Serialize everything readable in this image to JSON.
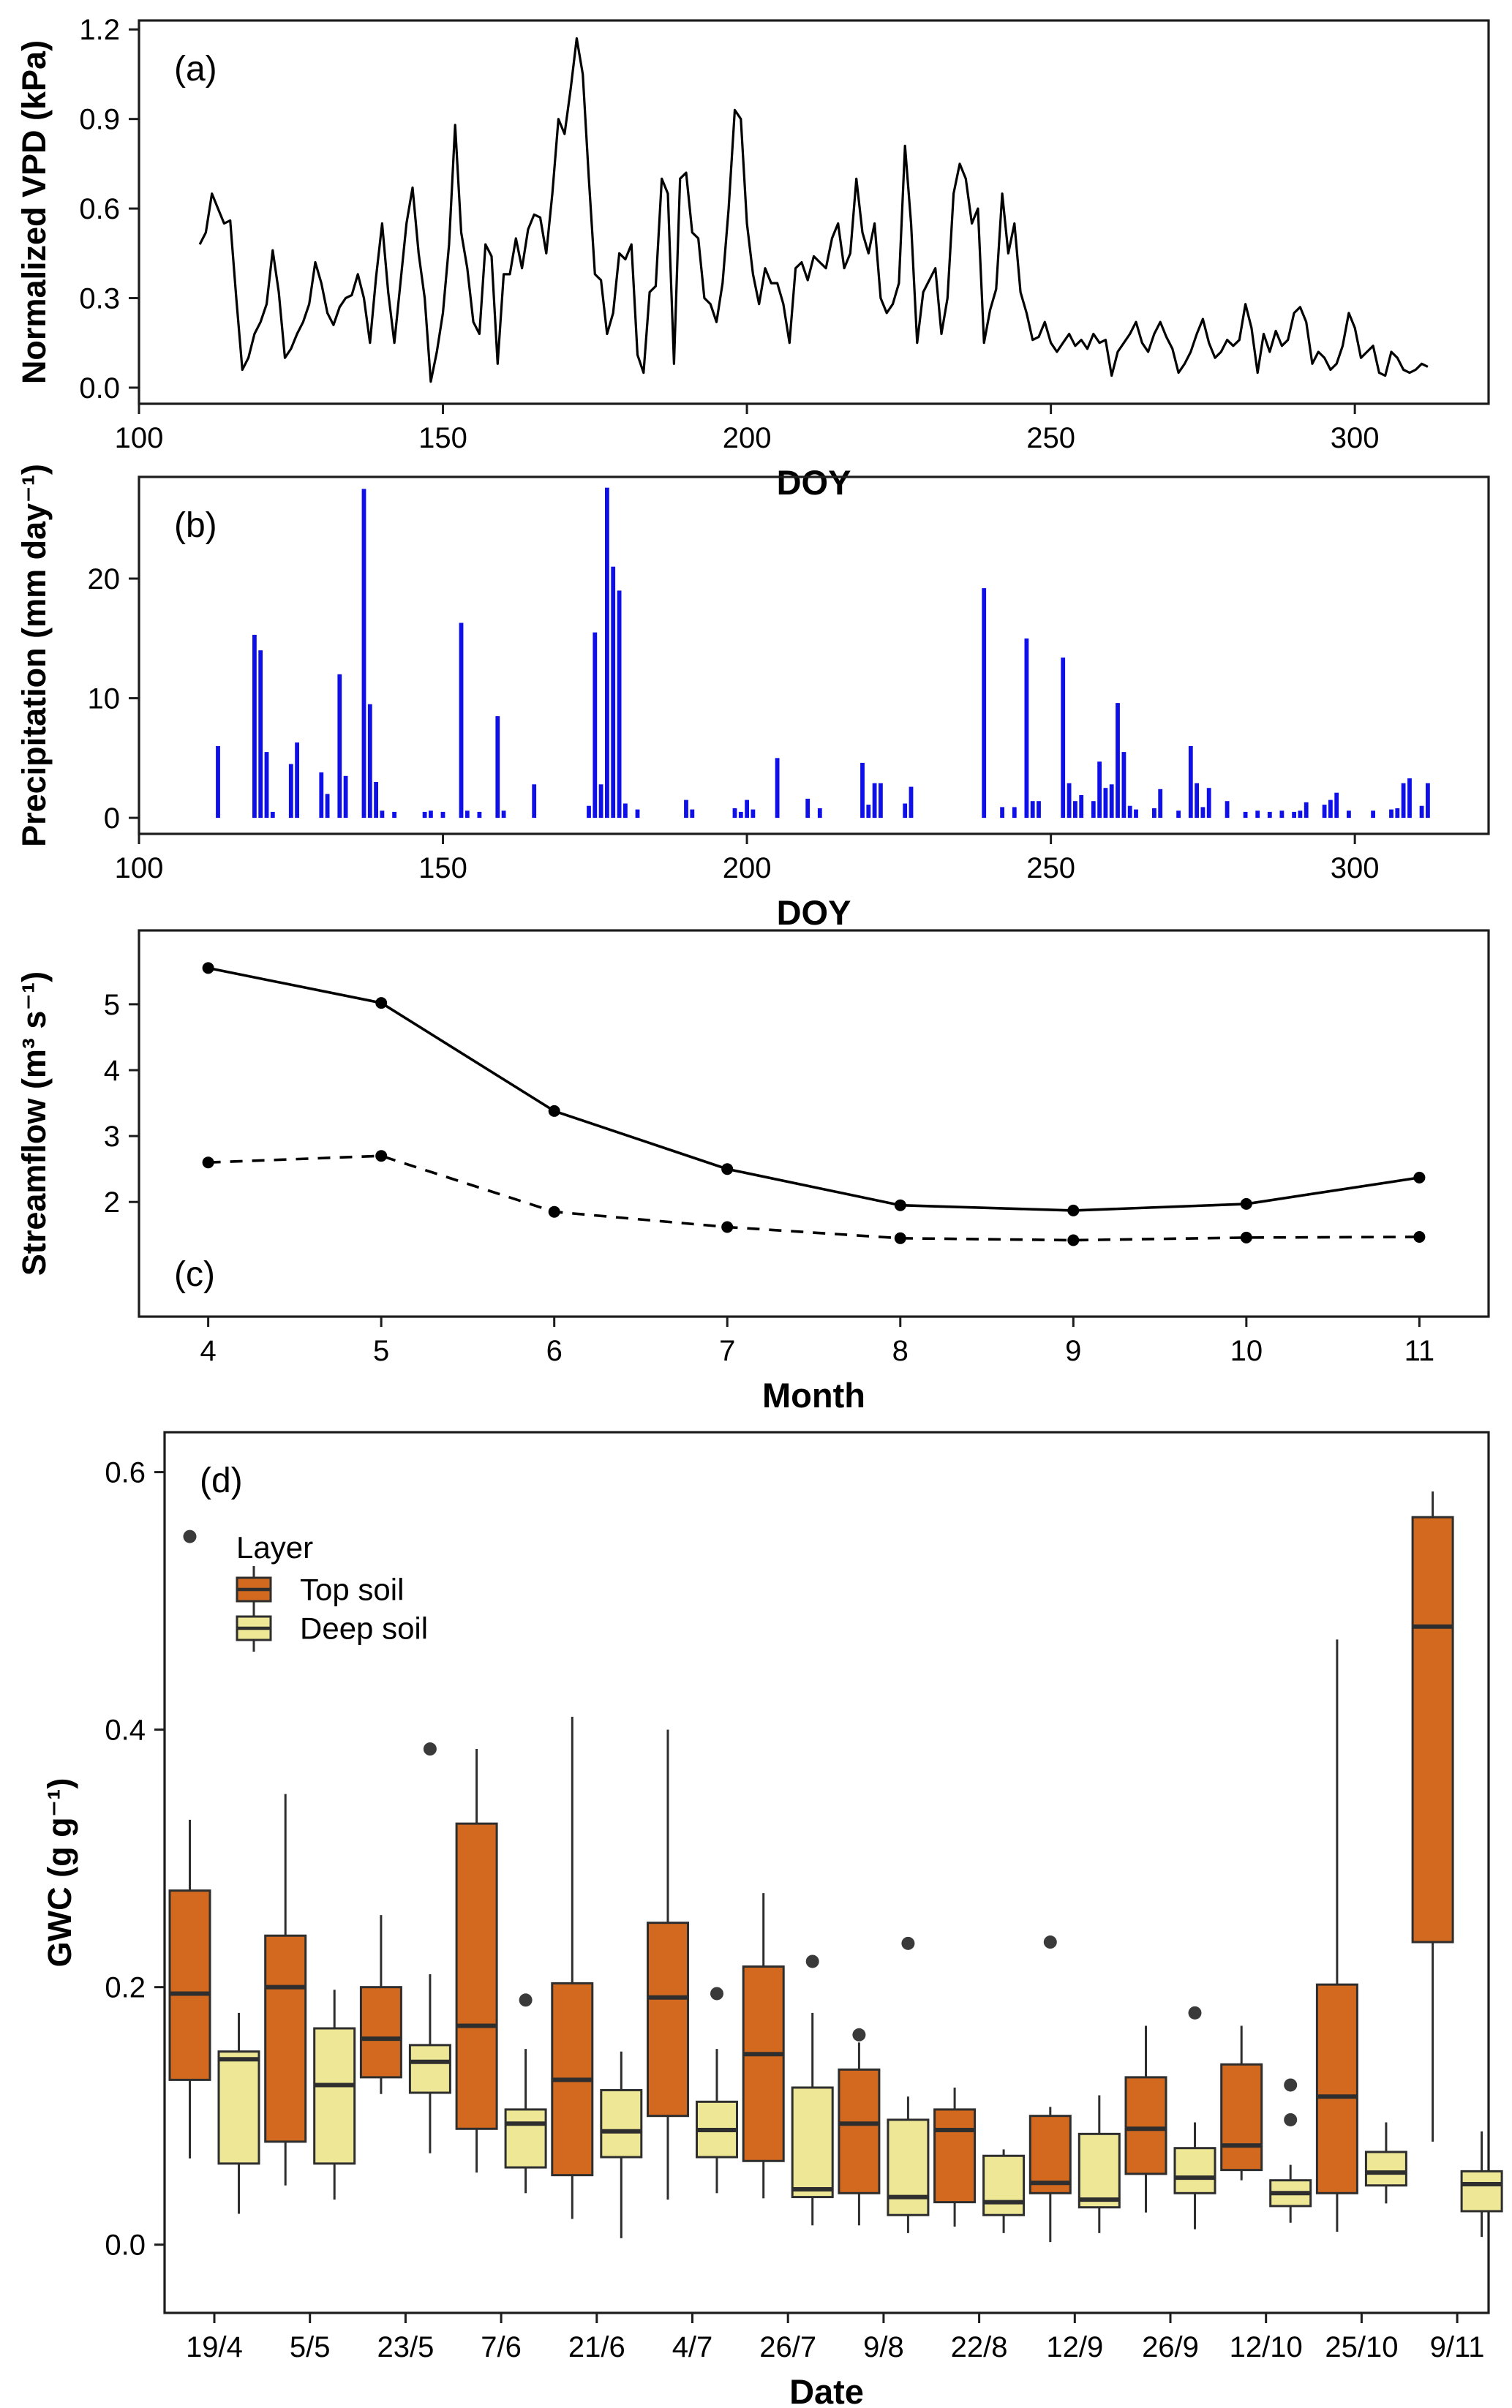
{
  "figure": {
    "kind": "four-panel environmental time-series figure",
    "panel_tags": [
      "(a)",
      "(b)",
      "(c)",
      "(d)"
    ]
  },
  "colors": {
    "line_black": "#000000",
    "axis_black": "#1c1c1c",
    "precip_blue": "#0f0fe8",
    "top_soil_orange": "#d2691e",
    "deep_soil_yellow": "#eee896",
    "box_border_dark": "#2e2e2e",
    "outlier_gray": "#3a3a3a",
    "background": "#ffffff"
  },
  "legend": {
    "title": "Layer",
    "entries": [
      {
        "label": "Top soil",
        "color": "#d2691e"
      },
      {
        "label": "Deep soil",
        "color": "#eee896"
      }
    ]
  },
  "chart_data": [
    {
      "panel": "a",
      "tag": "(a)",
      "type": "line",
      "title": "",
      "xlabel": "DOY",
      "ylabel": "Normalized VPD (kPa)",
      "x_ticks": [
        "100",
        "150",
        "200",
        "250",
        "300"
      ],
      "x_tick_values": [
        100,
        150,
        200,
        250,
        300
      ],
      "y_ticks": [
        "0.0",
        "0.3",
        "0.6",
        "0.9",
        "1.2"
      ],
      "y_tick_values": [
        0,
        0.3,
        0.6,
        0.9,
        1.2
      ],
      "xlim": [
        100,
        322
      ],
      "ylim": [
        0,
        1.23
      ],
      "x_start": 110,
      "x_step": 1,
      "grid": false,
      "values": [
        0.48,
        0.52,
        0.65,
        0.6,
        0.55,
        0.56,
        0.3,
        0.06,
        0.1,
        0.18,
        0.22,
        0.28,
        0.46,
        0.32,
        0.1,
        0.13,
        0.18,
        0.22,
        0.28,
        0.42,
        0.35,
        0.25,
        0.21,
        0.27,
        0.3,
        0.31,
        0.38,
        0.3,
        0.15,
        0.37,
        0.55,
        0.32,
        0.15,
        0.35,
        0.55,
        0.67,
        0.45,
        0.3,
        0.02,
        0.12,
        0.25,
        0.48,
        0.88,
        0.52,
        0.4,
        0.22,
        0.18,
        0.48,
        0.44,
        0.08,
        0.38,
        0.38,
        0.5,
        0.4,
        0.53,
        0.58,
        0.57,
        0.45,
        0.65,
        0.9,
        0.85,
        1.0,
        1.17,
        1.05,
        0.7,
        0.38,
        0.36,
        0.18,
        0.25,
        0.45,
        0.43,
        0.48,
        0.11,
        0.05,
        0.32,
        0.34,
        0.7,
        0.65,
        0.08,
        0.7,
        0.72,
        0.52,
        0.5,
        0.3,
        0.28,
        0.22,
        0.35,
        0.6,
        0.93,
        0.9,
        0.55,
        0.38,
        0.28,
        0.4,
        0.35,
        0.35,
        0.28,
        0.15,
        0.4,
        0.42,
        0.36,
        0.44,
        0.42,
        0.4,
        0.5,
        0.55,
        0.4,
        0.45,
        0.7,
        0.52,
        0.45,
        0.55,
        0.3,
        0.25,
        0.28,
        0.35,
        0.81,
        0.55,
        0.15,
        0.32,
        0.36,
        0.4,
        0.18,
        0.3,
        0.65,
        0.75,
        0.7,
        0.55,
        0.6,
        0.15,
        0.26,
        0.33,
        0.65,
        0.45,
        0.55,
        0.32,
        0.25,
        0.16,
        0.17,
        0.22,
        0.15,
        0.12,
        0.15,
        0.18,
        0.14,
        0.16,
        0.13,
        0.18,
        0.15,
        0.16,
        0.04,
        0.12,
        0.15,
        0.18,
        0.22,
        0.15,
        0.12,
        0.18,
        0.22,
        0.17,
        0.13,
        0.05,
        0.08,
        0.12,
        0.18,
        0.23,
        0.15,
        0.1,
        0.12,
        0.16,
        0.14,
        0.16,
        0.28,
        0.2,
        0.05,
        0.18,
        0.12,
        0.19,
        0.14,
        0.16,
        0.25,
        0.27,
        0.22,
        0.08,
        0.12,
        0.1,
        0.06,
        0.08,
        0.14,
        0.25,
        0.2,
        0.1,
        0.12,
        0.14,
        0.05,
        0.04,
        0.12,
        0.1,
        0.06,
        0.05,
        0.06,
        0.08,
        0.07
      ]
    },
    {
      "panel": "b",
      "tag": "(b)",
      "type": "bar",
      "title": "",
      "xlabel": "DOY",
      "ylabel": "Precipitation (mm day⁻¹)",
      "x_ticks": [
        "100",
        "150",
        "200",
        "250",
        "300"
      ],
      "x_tick_values": [
        100,
        150,
        200,
        250,
        300
      ],
      "y_ticks": [
        "0",
        "10",
        "20"
      ],
      "y_tick_values": [
        0,
        10,
        20
      ],
      "xlim": [
        100,
        322
      ],
      "ylim": [
        0,
        28.5
      ],
      "grid": false,
      "points": [
        [
          113,
          6.0
        ],
        [
          119,
          15.3
        ],
        [
          120,
          14.0
        ],
        [
          121,
          5.5
        ],
        [
          122,
          0.5
        ],
        [
          125,
          4.5
        ],
        [
          126,
          6.3
        ],
        [
          130,
          3.8
        ],
        [
          131,
          2.0
        ],
        [
          133,
          12.0
        ],
        [
          134,
          3.5
        ],
        [
          137,
          27.5
        ],
        [
          138,
          9.5
        ],
        [
          139,
          3.0
        ],
        [
          140,
          0.6
        ],
        [
          142,
          0.5
        ],
        [
          147,
          0.5
        ],
        [
          148,
          0.6
        ],
        [
          150,
          0.5
        ],
        [
          153,
          16.3
        ],
        [
          154,
          0.6
        ],
        [
          156,
          0.5
        ],
        [
          159,
          8.5
        ],
        [
          160,
          0.6
        ],
        [
          165,
          2.8
        ],
        [
          174,
          1.0
        ],
        [
          175,
          15.5
        ],
        [
          176,
          2.8
        ],
        [
          177,
          27.6
        ],
        [
          178,
          21.0
        ],
        [
          179,
          19.0
        ],
        [
          180,
          1.2
        ],
        [
          182,
          0.7
        ],
        [
          190,
          1.5
        ],
        [
          191,
          0.7
        ],
        [
          198,
          0.8
        ],
        [
          199,
          0.5
        ],
        [
          200,
          1.5
        ],
        [
          201,
          0.7
        ],
        [
          205,
          5.0
        ],
        [
          210,
          1.6
        ],
        [
          212,
          0.8
        ],
        [
          219,
          4.6
        ],
        [
          220,
          1.1
        ],
        [
          221,
          2.9
        ],
        [
          222,
          2.9
        ],
        [
          226,
          1.2
        ],
        [
          227,
          2.6
        ],
        [
          239,
          19.2
        ],
        [
          242,
          0.9
        ],
        [
          244,
          0.9
        ],
        [
          246,
          15.0
        ],
        [
          247,
          1.4
        ],
        [
          248,
          1.4
        ],
        [
          252,
          13.4
        ],
        [
          253,
          2.9
        ],
        [
          254,
          1.4
        ],
        [
          255,
          1.9
        ],
        [
          257,
          1.4
        ],
        [
          258,
          4.7
        ],
        [
          259,
          2.5
        ],
        [
          260,
          2.8
        ],
        [
          261,
          9.6
        ],
        [
          262,
          5.5
        ],
        [
          263,
          1.0
        ],
        [
          264,
          0.7
        ],
        [
          267,
          0.8
        ],
        [
          268,
          2.4
        ],
        [
          271,
          0.6
        ],
        [
          273,
          6.0
        ],
        [
          274,
          2.9
        ],
        [
          275,
          0.9
        ],
        [
          276,
          2.5
        ],
        [
          279,
          1.4
        ],
        [
          282,
          0.5
        ],
        [
          284,
          0.6
        ],
        [
          286,
          0.5
        ],
        [
          288,
          0.6
        ],
        [
          290,
          0.5
        ],
        [
          291,
          0.6
        ],
        [
          292,
          1.3
        ],
        [
          295,
          1.1
        ],
        [
          296,
          1.5
        ],
        [
          297,
          2.1
        ],
        [
          299,
          0.6
        ],
        [
          303,
          0.6
        ],
        [
          306,
          0.7
        ],
        [
          307,
          0.8
        ],
        [
          308,
          2.9
        ],
        [
          309,
          3.3
        ],
        [
          311,
          1.0
        ],
        [
          312,
          2.9
        ]
      ]
    },
    {
      "panel": "c",
      "tag": "(c)",
      "type": "line",
      "title": "",
      "xlabel": "Month",
      "ylabel": "Streamflow (m³ s⁻¹)",
      "x_ticks": [
        "4",
        "5",
        "6",
        "7",
        "8",
        "9",
        "10",
        "11"
      ],
      "x_tick_values": [
        4,
        5,
        6,
        7,
        8,
        9,
        10,
        11
      ],
      "y_ticks": [
        "2",
        "3",
        "4",
        "5"
      ],
      "y_tick_values": [
        2,
        3,
        4,
        5
      ],
      "xlim": [
        3.6,
        11.4
      ],
      "ylim": [
        0.26,
        6.12
      ],
      "grid": false,
      "x": [
        4,
        5,
        6,
        7,
        8,
        9,
        10,
        11
      ],
      "series": [
        {
          "name": "solid-line-with-points",
          "style": "solid",
          "values": [
            5.55,
            5.02,
            3.38,
            2.5,
            1.95,
            1.87,
            1.97,
            2.37
          ]
        },
        {
          "name": "dashed-line-with-points",
          "style": "dashed",
          "values": [
            2.6,
            2.7,
            1.85,
            1.62,
            1.45,
            1.42,
            1.46,
            1.47
          ]
        }
      ]
    },
    {
      "panel": "d",
      "tag": "(d)",
      "type": "boxplot",
      "title": "",
      "xlabel": "Date",
      "ylabel": "GWC (g g⁻¹)",
      "categories": [
        "19/4",
        "5/5",
        "23/5",
        "7/6",
        "21/6",
        "4/7",
        "26/7",
        "9/8",
        "22/8",
        "12/9",
        "26/9",
        "12/10",
        "25/10",
        "9/11"
      ],
      "y_ticks": [
        "0.0",
        "0.2",
        "0.4",
        "0.6"
      ],
      "y_tick_values": [
        0,
        0.2,
        0.4,
        0.6
      ],
      "ylim": [
        -0.053,
        0.631
      ],
      "grid": false,
      "legend_position": "inside top-left",
      "series": [
        {
          "name": "Top soil",
          "color": "#d2691e",
          "boxes": [
            {
              "b": [
                0.067,
                0.128,
                0.195,
                0.275,
                0.33
              ],
              "out": [
                0.55
              ]
            },
            {
              "b": [
                0.046,
                0.08,
                0.2,
                0.24,
                0.35
              ],
              "out": []
            },
            {
              "b": [
                0.117,
                0.13,
                0.16,
                0.2,
                0.256
              ],
              "out": []
            },
            {
              "b": [
                0.056,
                0.09,
                0.17,
                0.327,
                0.385
              ],
              "out": []
            },
            {
              "b": [
                0.02,
                0.054,
                0.128,
                0.203,
                0.41
              ],
              "out": []
            },
            {
              "b": [
                0.035,
                0.1,
                0.192,
                0.25,
                0.4
              ],
              "out": []
            },
            {
              "b": [
                0.036,
                0.065,
                0.148,
                0.216,
                0.273
              ],
              "out": []
            },
            {
              "b": [
                0.015,
                0.04,
                0.094,
                0.136,
                0.157
              ],
              "out": [
                0.163
              ]
            },
            {
              "b": [
                0.014,
                0.033,
                0.089,
                0.105,
                0.122
              ],
              "out": []
            },
            {
              "b": [
                0.002,
                0.04,
                0.048,
                0.1,
                0.107
              ],
              "out": [
                0.235
              ]
            },
            {
              "b": [
                0.025,
                0.055,
                0.09,
                0.13,
                0.17
              ],
              "out": []
            },
            {
              "b": [
                0.05,
                0.058,
                0.077,
                0.14,
                0.17
              ],
              "out": []
            },
            {
              "b": [
                0.01,
                0.04,
                0.115,
                0.202,
                0.47
              ],
              "out": []
            },
            {
              "b": [
                0.08,
                0.235,
                0.48,
                0.565,
                0.585
              ],
              "out": []
            }
          ]
        },
        {
          "name": "Deep soil",
          "color": "#eee896",
          "boxes": [
            {
              "b": [
                0.024,
                0.063,
                0.144,
                0.15,
                0.18
              ],
              "out": []
            },
            {
              "b": [
                0.035,
                0.063,
                0.124,
                0.168,
                0.198
              ],
              "out": []
            },
            {
              "b": [
                0.071,
                0.118,
                0.142,
                0.155,
                0.21
              ],
              "out": [
                0.385
              ]
            },
            {
              "b": [
                0.04,
                0.06,
                0.094,
                0.105,
                0.152
              ],
              "out": [
                0.19
              ]
            },
            {
              "b": [
                0.005,
                0.068,
                0.088,
                0.12,
                0.15
              ],
              "out": []
            },
            {
              "b": [
                0.04,
                0.068,
                0.089,
                0.111,
                0.152
              ],
              "out": [
                0.195
              ]
            },
            {
              "b": [
                0.015,
                0.037,
                0.043,
                0.122,
                0.18
              ],
              "out": [
                0.22
              ]
            },
            {
              "b": [
                0.009,
                0.023,
                0.037,
                0.097,
                0.115
              ],
              "out": [
                0.234
              ]
            },
            {
              "b": [
                0.009,
                0.023,
                0.033,
                0.069,
                0.074
              ],
              "out": []
            },
            {
              "b": [
                0.009,
                0.029,
                0.035,
                0.086,
                0.116
              ],
              "out": []
            },
            {
              "b": [
                0.012,
                0.04,
                0.052,
                0.075,
                0.095
              ],
              "out": [
                0.18
              ]
            },
            {
              "b": [
                0.017,
                0.03,
                0.04,
                0.05,
                0.062
              ],
              "out": [
                0.124,
                0.097
              ]
            },
            {
              "b": [
                0.032,
                0.046,
                0.056,
                0.072,
                0.095
              ],
              "out": []
            },
            {
              "b": [
                0.006,
                0.026,
                0.047,
                0.057,
                0.088
              ],
              "out": []
            }
          ]
        }
      ]
    }
  ]
}
